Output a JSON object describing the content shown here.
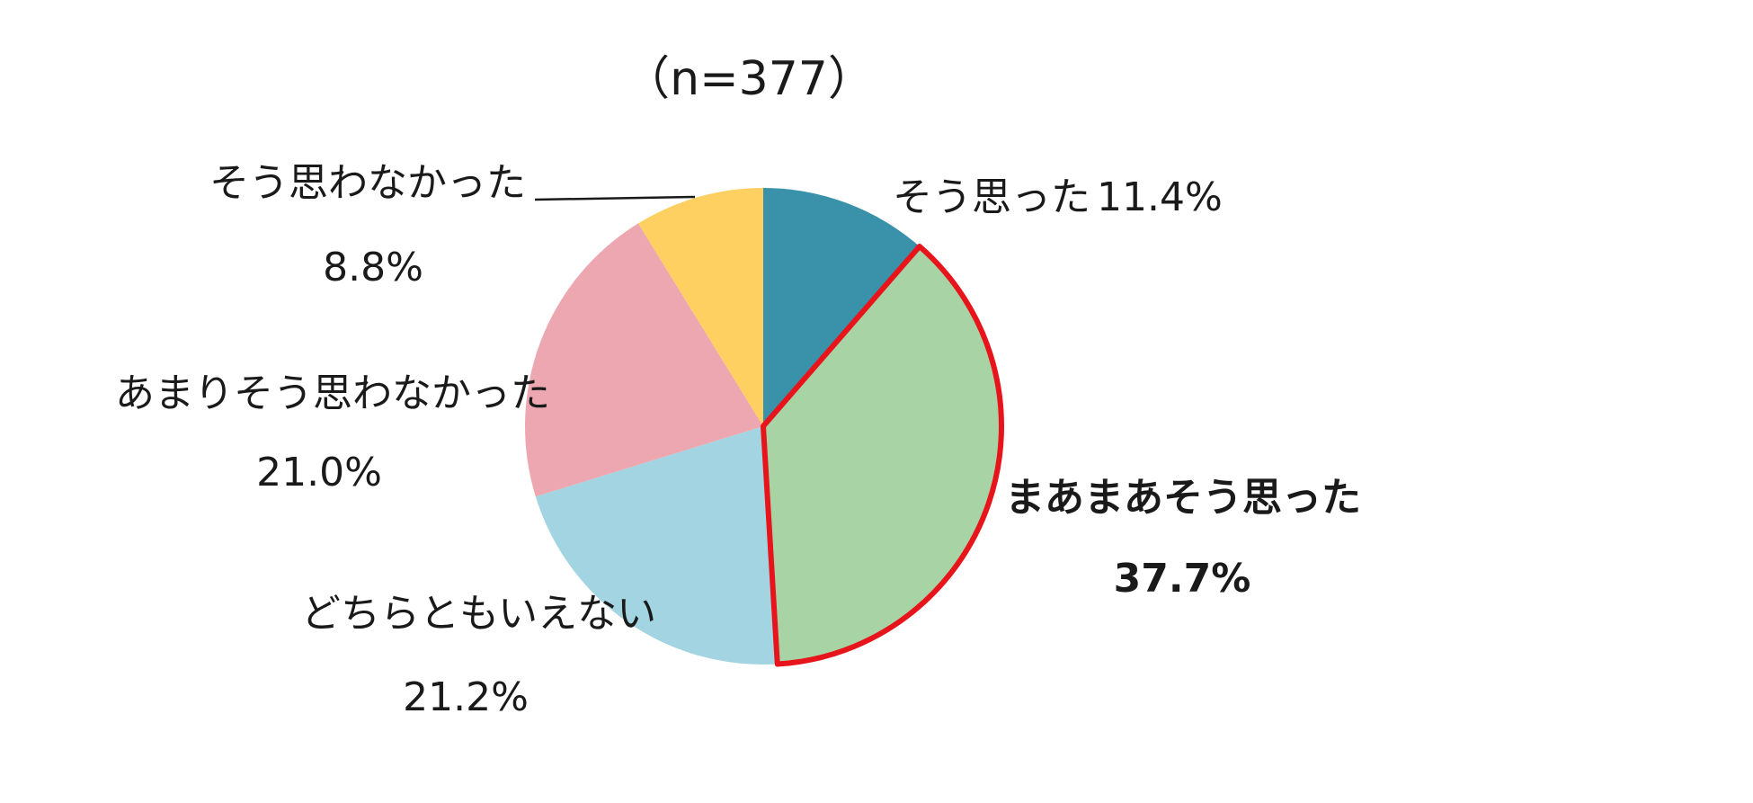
{
  "chart_data": {
    "type": "pie",
    "title": "（n=377）",
    "categories": [
      "そう思った",
      "まあまあそう思った",
      "どちらともいえない",
      "あまりそう思わなかった",
      "そう思わなかった"
    ],
    "values": [
      11.4,
      37.7,
      21.2,
      21.0,
      8.8
    ],
    "value_labels": [
      "11.4%",
      "37.7%",
      "21.2%",
      "21.0%",
      "8.8%"
    ],
    "colors": [
      "#3a91aa",
      "#a8d4a5",
      "#a3d4e1",
      "#eda7b0",
      "#fdd061"
    ],
    "highlighted": "まあまあそう思った",
    "highlight_color": "#e8141c",
    "start_angle": "12 o'clock",
    "direction": "clockwise",
    "legend": "none"
  }
}
